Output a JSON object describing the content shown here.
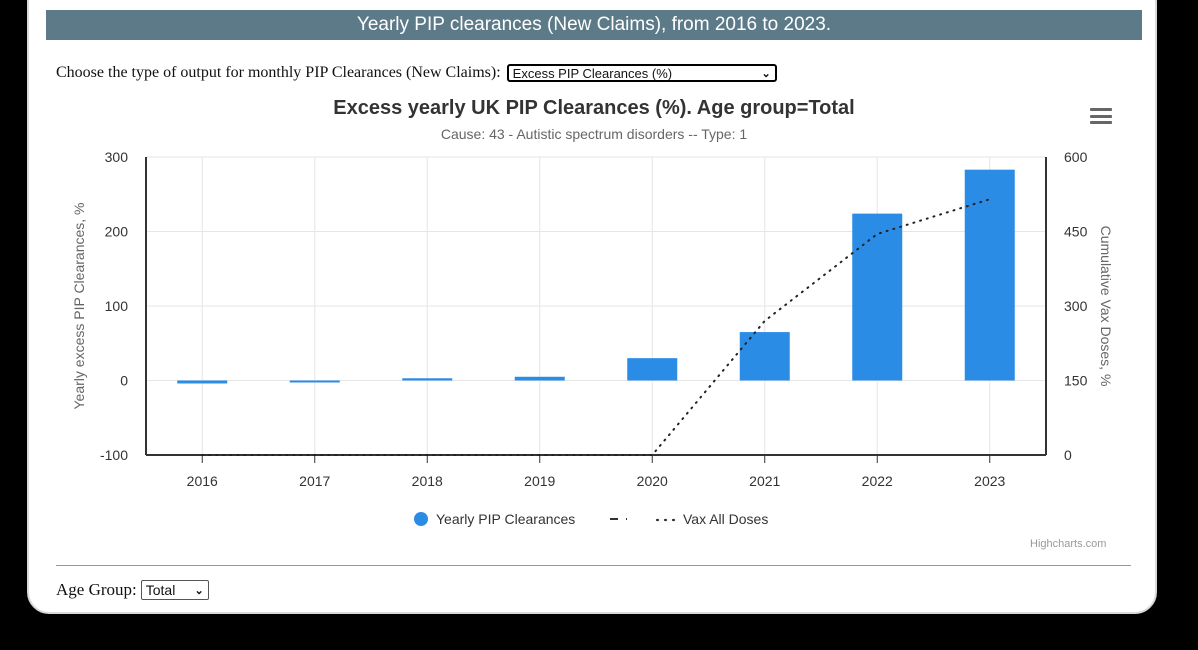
{
  "banner": {
    "title": "Yearly PIP clearances (New Claims), from 2016 to 2023."
  },
  "output_chooser": {
    "label": "Choose the type of output for monthly PIP Clearances (New Claims):",
    "selected": "Excess PIP Clearances (%)"
  },
  "menu": {
    "icon": "hamburger-menu-icon"
  },
  "credits": "Highcharts.com",
  "age_group": {
    "label": "Age Group:",
    "selected": "Total"
  },
  "colors": {
    "bar": "#2b8ce6",
    "line": "#222222",
    "grid": "#e6e6e6",
    "banner": "#5d7a88"
  },
  "chart_data": {
    "type": "bar",
    "title": "Excess yearly UK PIP Clearances (%). Age group=Total",
    "subtitle": "Cause: 43 - Autistic spectrum disorders -- Type: 1",
    "categories": [
      "2016",
      "2017",
      "2018",
      "2019",
      "2020",
      "2021",
      "2022",
      "2023"
    ],
    "ylabel": "Yearly excess PIP Clearances, %",
    "y2label": "Cumulative Vax Doses, %",
    "ylim": [
      -100,
      300
    ],
    "y2lim": [
      0,
      600
    ],
    "yticks": [
      "300",
      "200",
      "100",
      "0",
      "-100"
    ],
    "y2ticks": [
      "600",
      "450",
      "300",
      "150",
      "0"
    ],
    "grid": true,
    "legend_position": "bottom-center",
    "series": [
      {
        "name": "Yearly PIP Clearances",
        "type": "bar",
        "axis": "left",
        "values": [
          -4,
          -2,
          3,
          5,
          30,
          65,
          224,
          283
        ]
      },
      {
        "name": "Vax All Doses",
        "type": "line",
        "axis": "right",
        "style": "dotted",
        "values": [
          0,
          0,
          0,
          0,
          0,
          270,
          445,
          515
        ]
      }
    ]
  }
}
